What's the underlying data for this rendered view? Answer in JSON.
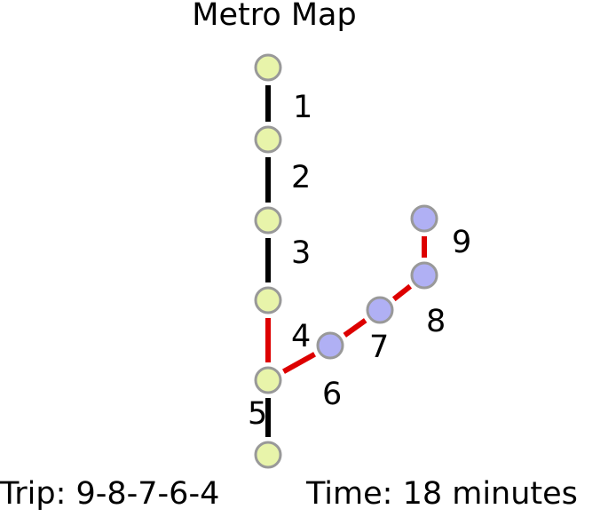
{
  "title": "Metro Map",
  "footer": {
    "trip": "Trip: 9-8-7-6-4",
    "time": "Time: 18 minutes"
  },
  "colors": {
    "background": "#ffffff",
    "line_default": "#000000",
    "line_route": "#dd0000",
    "station_yellow": "#e8f4aa",
    "station_blue": "#b0b0f4",
    "station_outline": "#999999"
  },
  "stations": [
    {
      "id": "s1",
      "color": "yellow"
    },
    {
      "id": "s2",
      "color": "yellow"
    },
    {
      "id": "s3",
      "color": "yellow"
    },
    {
      "id": "s4",
      "color": "yellow"
    },
    {
      "id": "s5",
      "color": "yellow"
    },
    {
      "id": "s6",
      "color": "yellow"
    },
    {
      "id": "s7",
      "color": "blue"
    },
    {
      "id": "s8",
      "color": "blue"
    },
    {
      "id": "s9",
      "color": "blue"
    },
    {
      "id": "s10",
      "color": "blue"
    }
  ],
  "segments": [
    {
      "label": "1",
      "from": "s1",
      "to": "s2",
      "on_route": false
    },
    {
      "label": "2",
      "from": "s2",
      "to": "s3",
      "on_route": false
    },
    {
      "label": "3",
      "from": "s3",
      "to": "s4",
      "on_route": false
    },
    {
      "label": "4",
      "from": "s4",
      "to": "s5",
      "on_route": true
    },
    {
      "label": "5",
      "from": "s5",
      "to": "s6",
      "on_route": false
    },
    {
      "label": "6",
      "from": "s5",
      "to": "s7",
      "on_route": true
    },
    {
      "label": "7",
      "from": "s7",
      "to": "s8",
      "on_route": true
    },
    {
      "label": "8",
      "from": "s8",
      "to": "s9",
      "on_route": true
    },
    {
      "label": "9",
      "from": "s9",
      "to": "s10",
      "on_route": true
    }
  ]
}
